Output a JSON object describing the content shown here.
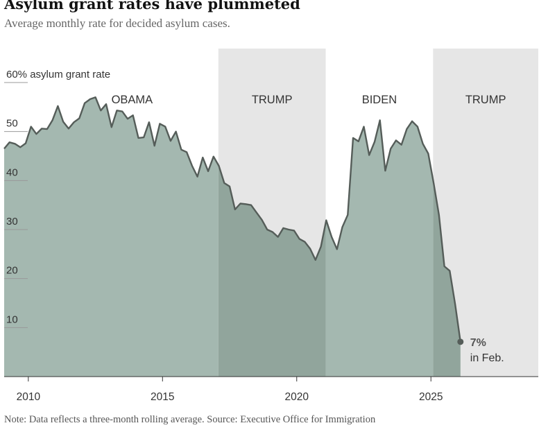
{
  "header": {
    "title": "Asylum grant rates have plummeted",
    "subtitle": "Average monthly rate for decided asylum cases."
  },
  "footer": {
    "note": "Note: Data reflects a three-month rolling average.  Source: Executive Office for Immigration"
  },
  "colors": {
    "area_light": "#a4b8b0",
    "area_dark": "#91a59c",
    "line": "#555d59",
    "shade": "#e6e6e6",
    "axis_text": "#333333",
    "grid": "#999999"
  },
  "chart_data": {
    "type": "area",
    "title": "",
    "xlabel": "",
    "ylabel": "60% asylum grant rate",
    "xlim": [
      2009.1,
      2029.0
    ],
    "ylim": [
      0,
      60
    ],
    "grid": "horizontal",
    "y_ticks": [
      {
        "value": 10,
        "label": "10"
      },
      {
        "value": 20,
        "label": "20"
      },
      {
        "value": 30,
        "label": "30"
      },
      {
        "value": 40,
        "label": "40"
      },
      {
        "value": 50,
        "label": "50"
      },
      {
        "value": 60,
        "label": "60% asylum grant rate"
      }
    ],
    "x_ticks": [
      {
        "value": 2010,
        "label": "2010"
      },
      {
        "value": 2015,
        "label": "2015"
      },
      {
        "value": 2020,
        "label": "2020"
      },
      {
        "value": 2025,
        "label": "2025"
      }
    ],
    "periods": [
      {
        "label": "OBAMA",
        "start": 2009.1,
        "end": 2017.08,
        "shaded": false
      },
      {
        "label": "TRUMP",
        "start": 2017.08,
        "end": 2021.08,
        "shaded": true
      },
      {
        "label": "BIDEN",
        "start": 2021.08,
        "end": 2025.08,
        "shaded": false
      },
      {
        "label": "TRUMP",
        "start": 2025.08,
        "end": 2029.0,
        "shaded": true
      }
    ],
    "annotation": {
      "value_text": "7%",
      "sub_text": "in Feb.",
      "x": 2026.1,
      "y": 7.1
    },
    "series": [
      {
        "values": [
          [
            2009.1,
            46.5
          ],
          [
            2009.3,
            47.8
          ],
          [
            2009.5,
            47.5
          ],
          [
            2009.7,
            46.8
          ],
          [
            2009.9,
            47.6
          ],
          [
            2010.1,
            51.0
          ],
          [
            2010.3,
            49.5
          ],
          [
            2010.5,
            50.6
          ],
          [
            2010.7,
            50.5
          ],
          [
            2010.9,
            52.3
          ],
          [
            2011.1,
            55.2
          ],
          [
            2011.3,
            52.0
          ],
          [
            2011.5,
            50.6
          ],
          [
            2011.7,
            51.9
          ],
          [
            2011.9,
            52.7
          ],
          [
            2012.1,
            55.8
          ],
          [
            2012.3,
            56.6
          ],
          [
            2012.5,
            57.0
          ],
          [
            2012.7,
            54.3
          ],
          [
            2012.9,
            55.6
          ],
          [
            2013.1,
            50.9
          ],
          [
            2013.3,
            54.3
          ],
          [
            2013.5,
            54.1
          ],
          [
            2013.7,
            52.6
          ],
          [
            2013.9,
            53.3
          ],
          [
            2014.1,
            48.7
          ],
          [
            2014.3,
            48.8
          ],
          [
            2014.5,
            51.9
          ],
          [
            2014.7,
            47.1
          ],
          [
            2014.9,
            51.6
          ],
          [
            2015.1,
            51.0
          ],
          [
            2015.3,
            48.1
          ],
          [
            2015.5,
            50.0
          ],
          [
            2015.7,
            46.3
          ],
          [
            2015.9,
            45.8
          ],
          [
            2016.1,
            43.0
          ],
          [
            2016.3,
            40.8
          ],
          [
            2016.5,
            44.7
          ],
          [
            2016.7,
            41.9
          ],
          [
            2016.9,
            44.9
          ],
          [
            2017.1,
            43.0
          ],
          [
            2017.3,
            39.5
          ],
          [
            2017.5,
            38.8
          ],
          [
            2017.7,
            34.1
          ],
          [
            2017.9,
            35.3
          ],
          [
            2018.1,
            35.2
          ],
          [
            2018.3,
            35.0
          ],
          [
            2018.5,
            33.5
          ],
          [
            2018.7,
            32.0
          ],
          [
            2018.9,
            30.0
          ],
          [
            2019.1,
            29.5
          ],
          [
            2019.3,
            28.5
          ],
          [
            2019.5,
            30.3
          ],
          [
            2019.7,
            30.0
          ],
          [
            2019.9,
            29.8
          ],
          [
            2020.1,
            28.1
          ],
          [
            2020.3,
            27.5
          ],
          [
            2020.5,
            26.1
          ],
          [
            2020.7,
            23.8
          ],
          [
            2020.9,
            26.5
          ],
          [
            2021.1,
            31.9
          ],
          [
            2021.3,
            28.5
          ],
          [
            2021.5,
            26.0
          ],
          [
            2021.7,
            30.5
          ],
          [
            2021.9,
            33.0
          ],
          [
            2022.1,
            48.7
          ],
          [
            2022.3,
            48.0
          ],
          [
            2022.5,
            51.0
          ],
          [
            2022.7,
            45.2
          ],
          [
            2022.9,
            47.9
          ],
          [
            2023.1,
            52.3
          ],
          [
            2023.3,
            42.0
          ],
          [
            2023.5,
            46.5
          ],
          [
            2023.7,
            48.2
          ],
          [
            2023.9,
            47.3
          ],
          [
            2024.1,
            50.5
          ],
          [
            2024.3,
            52.1
          ],
          [
            2024.5,
            51.0
          ],
          [
            2024.7,
            47.5
          ],
          [
            2024.9,
            45.5
          ],
          [
            2025.1,
            39.5
          ],
          [
            2025.3,
            33.0
          ],
          [
            2025.5,
            22.5
          ],
          [
            2025.7,
            21.6
          ],
          [
            2025.9,
            14.8
          ],
          [
            2026.1,
            7.1
          ]
        ]
      }
    ]
  }
}
